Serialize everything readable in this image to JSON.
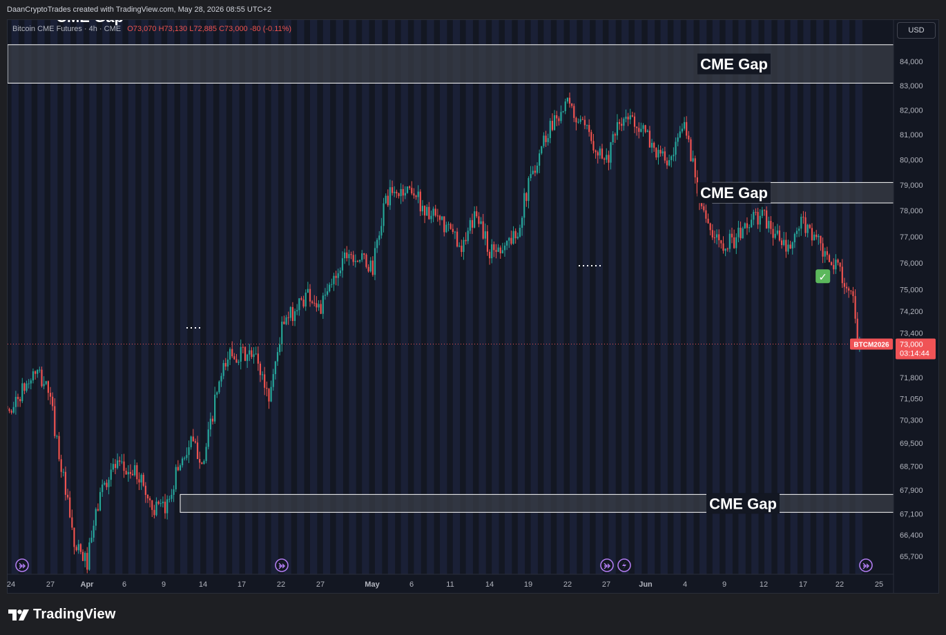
{
  "header": {
    "watermark": "DaanCryptoTrades created with TradingView.com, May 28, 2026 08:55 UTC+2"
  },
  "legend": {
    "symbol": "Bitcoin CME Futures · 4h · CME",
    "open_label": "O",
    "open": "73,070",
    "high_label": "H",
    "high": "73,130",
    "low_label": "L",
    "low": "72,885",
    "close_label": "C",
    "close": "73,000",
    "change": "-80 (-0.11%)"
  },
  "toolbar": {
    "currency": "USD"
  },
  "footer": {
    "brand": "TradingView"
  },
  "colors": {
    "background": "#131722",
    "session_band": "#1a2036",
    "up": "#26a69a",
    "down": "#ef5350",
    "gap_fill": "#3a3d47",
    "price_tag": "#f05356"
  },
  "chart_data": {
    "type": "candlestick",
    "interval": "4h",
    "x_axis_labels": [
      "24",
      "27",
      "Apr",
      "6",
      "9",
      "14",
      "17",
      "22",
      "27",
      "May",
      "6",
      "11",
      "14",
      "19",
      "22",
      "27",
      "Jun",
      "4",
      "9",
      "12",
      "17",
      "22",
      "25"
    ],
    "y_axis_ticks": [
      84000,
      83000,
      82000,
      81000,
      80000,
      79000,
      78000,
      77000,
      76000,
      75000,
      74200,
      73400,
      71800,
      71050,
      70300,
      69500,
      68700,
      67900,
      67100,
      66400,
      65700
    ],
    "y_axis_labels": [
      "84,000",
      "83,000",
      "82,000",
      "81,000",
      "80,000",
      "79,000",
      "78,000",
      "77,000",
      "76,000",
      "75,000",
      "74,200",
      "73,400",
      "71,800",
      "71,050",
      "70,300",
      "69,500",
      "68,700",
      "67,900",
      "67,100",
      "66,400",
      "65,700"
    ],
    "price_scale": "logarithmic",
    "last_price": {
      "value": 73000,
      "symbol_tag": "BTCM2026",
      "label": "73,000",
      "countdown": "03:14:44"
    },
    "price_path_anchors": [
      {
        "date": "Mar 23",
        "price": 71200
      },
      {
        "date": "Mar 24",
        "price": 70600
      },
      {
        "date": "Mar 26",
        "price": 72000
      },
      {
        "date": "Mar 27",
        "price": 71400
      },
      {
        "date": "Mar 29",
        "price": 66000
      },
      {
        "date": "Mar 30",
        "price": 65500
      },
      {
        "date": "Mar 31",
        "price": 67800
      },
      {
        "date": "Apr 1",
        "price": 68700
      },
      {
        "date": "Apr 3",
        "price": 68400
      },
      {
        "date": "Apr 4",
        "price": 67300
      },
      {
        "date": "Apr 5",
        "price": 67200
      },
      {
        "date": "Apr 6",
        "price": 68700
      },
      {
        "date": "Apr 7",
        "price": 69500
      },
      {
        "date": "Apr 8",
        "price": 68900
      },
      {
        "date": "Apr 9",
        "price": 71300
      },
      {
        "date": "Apr 10",
        "price": 72700
      },
      {
        "date": "Apr 12",
        "price": 72500
      },
      {
        "date": "Apr 13",
        "price": 71100
      },
      {
        "date": "Apr 14",
        "price": 73600
      },
      {
        "date": "Apr 16",
        "price": 74900
      },
      {
        "date": "Apr 17",
        "price": 74300
      },
      {
        "date": "Apr 19",
        "price": 76500
      },
      {
        "date": "Apr 21",
        "price": 75800
      },
      {
        "date": "Apr 22",
        "price": 78500
      },
      {
        "date": "Apr 24",
        "price": 78900
      },
      {
        "date": "Apr 25",
        "price": 78000
      },
      {
        "date": "Apr 27",
        "price": 77200
      },
      {
        "date": "Apr 28",
        "price": 76600
      },
      {
        "date": "Apr 29",
        "price": 78000
      },
      {
        "date": "Apr 30",
        "price": 76400
      },
      {
        "date": "May 2",
        "price": 77000
      },
      {
        "date": "May 3",
        "price": 79000
      },
      {
        "date": "May 4",
        "price": 80600
      },
      {
        "date": "May 5",
        "price": 81700
      },
      {
        "date": "May 6",
        "price": 82200
      },
      {
        "date": "May 7",
        "price": 81400
      },
      {
        "date": "May 8",
        "price": 80700
      },
      {
        "date": "May 9",
        "price": 80000
      },
      {
        "date": "May 10",
        "price": 81400
      },
      {
        "date": "May 11",
        "price": 81700
      },
      {
        "date": "May 12",
        "price": 81000
      },
      {
        "date": "May 13",
        "price": 80200
      },
      {
        "date": "May 14",
        "price": 79800
      },
      {
        "date": "May 15",
        "price": 81500
      },
      {
        "date": "May 16",
        "price": 79000
      },
      {
        "date": "May 17",
        "price": 77000
      },
      {
        "date": "May 18",
        "price": 76800
      },
      {
        "date": "May 19",
        "price": 76900
      },
      {
        "date": "May 20",
        "price": 77600
      },
      {
        "date": "May 21",
        "price": 77800
      },
      {
        "date": "May 22",
        "price": 77100
      },
      {
        "date": "May 23",
        "price": 76400
      },
      {
        "date": "May 24",
        "price": 77500
      },
      {
        "date": "May 25",
        "price": 77100
      },
      {
        "date": "May 26",
        "price": 76000
      },
      {
        "date": "May 27",
        "price": 75800
      },
      {
        "date": "May 28",
        "price": 74500
      },
      {
        "date": "May 28 08:00",
        "price": 73000
      }
    ],
    "annotations": [
      {
        "type": "zone",
        "label": "CME Gap",
        "start": "Mar 23",
        "end": "Jun 26",
        "low": 83100,
        "high": 84700
      },
      {
        "type": "zone",
        "label": "CME Gap",
        "start": "May 17",
        "end": "Jun 26",
        "low": 78300,
        "high": 79100
      },
      {
        "type": "zone",
        "label": "CME Gap",
        "start": "Apr 6",
        "end": "Jun 26",
        "low": 67150,
        "high": 67750
      },
      {
        "type": "marker",
        "label": "✅",
        "date": "May 25",
        "price": 75500
      }
    ],
    "partial_top_label": "CME Gap",
    "grid": false,
    "legend_position": "top-left"
  }
}
